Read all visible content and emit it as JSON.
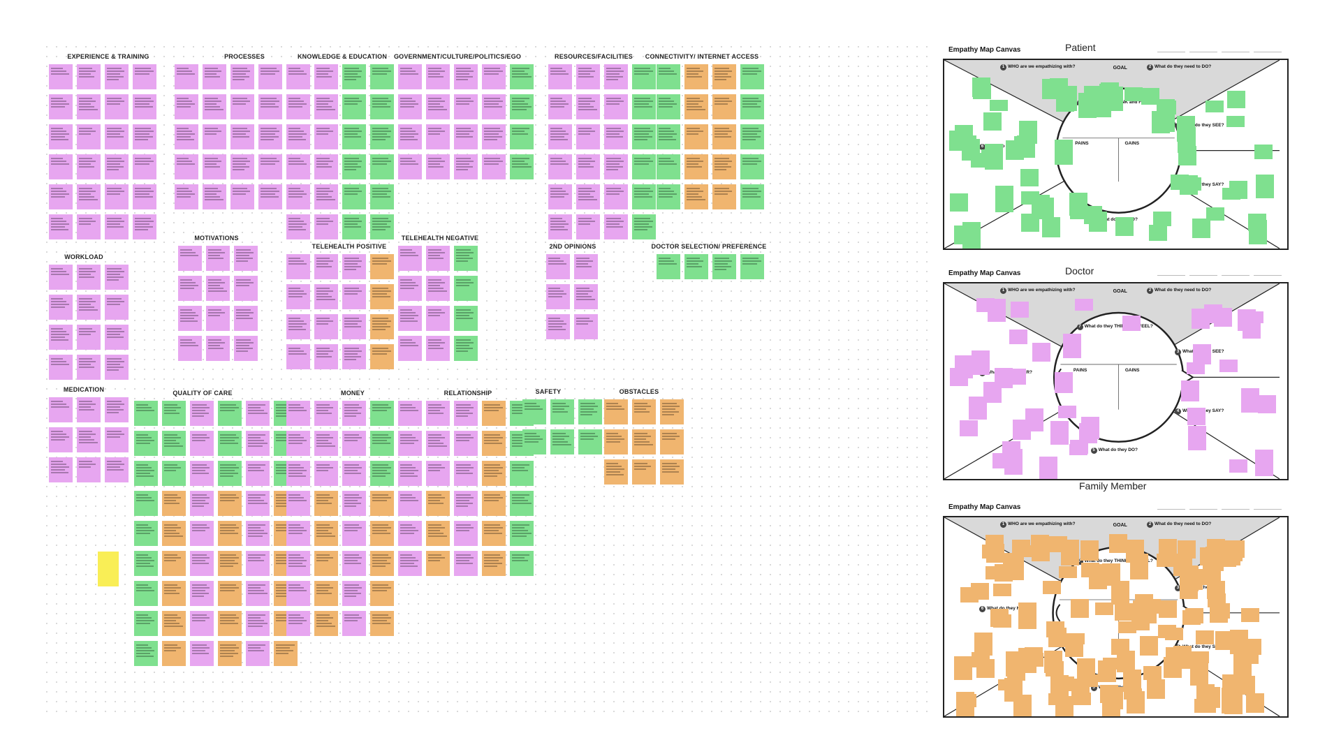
{
  "board": {
    "clusters": [
      {
        "title": "EXPERIENCE & TRAINING",
        "color": "#e7a6f0"
      },
      {
        "title": "PROCESSES",
        "color": "#e7a6f0"
      },
      {
        "title": "KNOWLEDGE & EDUCATION",
        "color": "#e7a6f0"
      },
      {
        "title": "GOVERNMENT/CULTURE/POLITICS/EGO",
        "color": "#e7a6f0"
      },
      {
        "title": "RESOURCES/FACILITIES",
        "color": "#e7a6f0"
      },
      {
        "title": "CONNECTIVITY/ INTERNET ACCESS",
        "color": "#7fe08f"
      },
      {
        "title": "MOTIVATIONS",
        "color": "#e7a6f0"
      },
      {
        "title": "TELEHEALTH POSITIVE",
        "color": "#e7a6f0"
      },
      {
        "title": "TELEHEALTH NEGATIVE",
        "color": "#e7a6f0"
      },
      {
        "title": "2ND OPINIONS",
        "color": "#e7a6f0"
      },
      {
        "title": "DOCTOR SELECTION/ PREFERENCE",
        "color": "#7fe08f"
      },
      {
        "title": "WORKLOAD",
        "color": "#e7a6f0"
      },
      {
        "title": "MEDICATION",
        "color": "#e7a6f0"
      },
      {
        "title": "QUALITY OF CARE",
        "color": "#7fe08f"
      },
      {
        "title": "MONEY",
        "color": "#e7a6f0"
      },
      {
        "title": "RELATIONSHIP",
        "color": "#e7a6f0"
      },
      {
        "title": "SAFETY",
        "color": "#7fe08f"
      },
      {
        "title": "OBSTACLES",
        "color": "#f0b56f"
      }
    ]
  },
  "canvases": [
    {
      "title": "Empathy Map Canvas",
      "label": "Patient",
      "sticky_color": "#7fe08f"
    },
    {
      "title": "Empathy Map Canvas",
      "label": "Doctor",
      "sticky_color": "#e7a6f0"
    },
    {
      "title": "Empathy Map Canvas",
      "label": "Family Member",
      "sticky_color": "#f0b56f"
    }
  ],
  "map_labels": {
    "q1": "WHO are we empathizing with?",
    "q2": "What do they need to DO?",
    "goal": "GOAL",
    "q3": "What do they SEE?",
    "q4": "What do they SAY?",
    "q5": "What do they DO?",
    "q6": "What do they HEAR?",
    "q7": "What do they THINK and FEEL?",
    "pains": "PAINS",
    "gains": "GAINS"
  }
}
